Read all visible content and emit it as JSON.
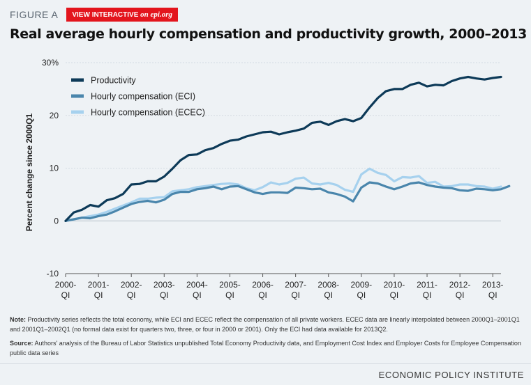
{
  "header": {
    "figure_label": "FIGURE A",
    "interactive_prefix": "VIEW INTERACTIVE ",
    "interactive_site": "on epi.org"
  },
  "colors": {
    "productivity": "#0d3a58",
    "eci": "#4a86ac",
    "ecec": "#a6d1ee",
    "interactive_bg": "#e3151d"
  },
  "chart_data": {
    "type": "line",
    "title": "Real average hourly compensation and productivity growth, 2000–2013",
    "ylabel": "Percent change since 2000Q1",
    "xlabel": "",
    "ylim": [
      -10,
      30
    ],
    "yticks": [
      -10,
      0,
      10,
      20,
      30
    ],
    "ytick_labels": [
      "-10",
      "0",
      "10",
      "20",
      "30%"
    ],
    "x_start": 2000,
    "x_end": 2013.25,
    "xticks": [
      {
        "x": 2000,
        "year": "2000-",
        "q": "QI"
      },
      {
        "x": 2001,
        "year": "2001-",
        "q": "QI"
      },
      {
        "x": 2002,
        "year": "2002-",
        "q": "QI"
      },
      {
        "x": 2003,
        "year": "2003-",
        "q": "QI"
      },
      {
        "x": 2004,
        "year": "2004-",
        "q": "QI"
      },
      {
        "x": 2005,
        "year": "2005-",
        "q": "QI"
      },
      {
        "x": 2006,
        "year": "2006-",
        "q": "QI"
      },
      {
        "x": 2007,
        "year": "2007-",
        "q": "QI"
      },
      {
        "x": 2008,
        "year": "2008-",
        "q": "QI"
      },
      {
        "x": 2009,
        "year": "2009-",
        "q": "QI"
      },
      {
        "x": 2010,
        "year": "2010-",
        "q": "QI"
      },
      {
        "x": 2011,
        "year": "2011-",
        "q": "QI"
      },
      {
        "x": 2012,
        "year": "2012-",
        "q": "QI"
      },
      {
        "x": 2013,
        "year": "2013-",
        "q": "QI"
      }
    ],
    "legend_position": "top-left",
    "series": [
      {
        "name": "Productivity",
        "values": [
          0,
          1.6,
          2.1,
          3.0,
          2.7,
          3.9,
          4.3,
          5.1,
          6.9,
          7.0,
          7.5,
          7.5,
          8.4,
          9.9,
          11.5,
          12.5,
          12.6,
          13.4,
          13.8,
          14.6,
          15.2,
          15.4,
          16.0,
          16.4,
          16.8,
          16.9,
          16.4,
          16.8,
          17.1,
          17.5,
          18.6,
          18.8,
          18.2,
          18.9,
          19.3,
          18.9,
          19.5,
          21.5,
          23.3,
          24.6,
          25.0,
          25.0,
          25.8,
          26.2,
          25.5,
          25.8,
          25.7,
          26.5,
          27.0,
          27.3,
          27.0,
          26.8,
          27.1,
          27.3
        ]
      },
      {
        "name": "Hourly compensation (ECI)",
        "values": [
          0,
          0.3,
          0.6,
          0.5,
          0.9,
          1.2,
          1.8,
          2.5,
          3.2,
          3.6,
          3.8,
          3.5,
          4.0,
          5.1,
          5.5,
          5.5,
          6.0,
          6.2,
          6.5,
          6.0,
          6.5,
          6.6,
          6.0,
          5.4,
          5.1,
          5.4,
          5.4,
          5.3,
          6.3,
          6.2,
          6.0,
          6.1,
          5.4,
          5.1,
          4.6,
          3.7,
          6.3,
          7.3,
          7.1,
          6.5,
          6.0,
          6.5,
          7.1,
          7.3,
          6.8,
          6.5,
          6.3,
          6.2,
          5.8,
          5.7,
          6.1,
          6.0,
          5.8,
          6.0,
          6.6
        ]
      },
      {
        "name": "Hourly compensation (ECEC)",
        "values": [
          0,
          0.3,
          0.6,
          0.9,
          1.2,
          1.7,
          2.3,
          2.9,
          3.5,
          4.2,
          4.2,
          4.4,
          4.5,
          5.6,
          5.8,
          6.0,
          6.4,
          6.6,
          6.8,
          7.0,
          7.1,
          6.9,
          6.2,
          5.8,
          6.4,
          7.3,
          6.9,
          7.2,
          8.0,
          8.2,
          7.1,
          6.9,
          7.2,
          6.8,
          5.9,
          5.5,
          8.8,
          9.9,
          9.1,
          8.7,
          7.5,
          8.3,
          8.2,
          8.5,
          7.2,
          7.4,
          6.5,
          6.6,
          6.9,
          6.9,
          6.6,
          6.5,
          6.1,
          6.5
        ]
      }
    ]
  },
  "notes": {
    "note_label": "Note:",
    "note_text": " Productivity series reflects the total economy, while ECI and ECEC reflect the compensation of all private workers. ECEC data are linearly interpolated between 2000Q1–2001Q1 and 2001Q1–2002Q1 (no formal data exist for quarters two, three, or four in 2000 or 2001). Only the ECI had data available for 2013Q2.",
    "source_label": "Source:",
    "source_text": " Authors' analysis of the Bureau of Labor Statistics unpublished Total Economy Productivity data, and Employment Cost Index and Employer Costs for Employee Compensation public data series"
  },
  "footer": {
    "brand": "ECONOMIC POLICY INSTITUTE"
  }
}
